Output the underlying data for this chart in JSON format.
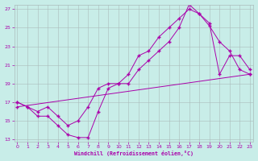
{
  "bg_color": "#c8ede8",
  "line_color": "#aa00aa",
  "grid_color": "#aabbbb",
  "xlim": [
    0,
    23
  ],
  "ylim": [
    13,
    27
  ],
  "xticks": [
    0,
    1,
    2,
    3,
    4,
    5,
    6,
    7,
    8,
    9,
    10,
    11,
    12,
    13,
    14,
    15,
    16,
    17,
    18,
    19,
    20,
    21,
    22,
    23
  ],
  "yticks": [
    13,
    15,
    17,
    19,
    21,
    23,
    25,
    27
  ],
  "xlabel": "Windchill (Refroidissement éolien,°C)",
  "series": [
    {
      "x": [
        0,
        1,
        2,
        3,
        4,
        5,
        6,
        7,
        8,
        9,
        10,
        11,
        12,
        13,
        14,
        15,
        16,
        17,
        18,
        19,
        20,
        21,
        22,
        23
      ],
      "y": [
        17.0,
        16.5,
        15.5,
        15.5,
        14.5,
        13.5,
        13.2,
        13.2,
        16.0,
        18.5,
        19.0,
        19.0,
        20.5,
        21.5,
        22.5,
        23.5,
        25.0,
        27.5,
        26.5,
        25.2,
        23.5,
        22.5,
        20.5,
        20.0
      ]
    },
    {
      "x": [
        0,
        1,
        2,
        3,
        4,
        5,
        6,
        7,
        8,
        9,
        10,
        11,
        12,
        13,
        14,
        15,
        16,
        17,
        18,
        19,
        20,
        21,
        22,
        23
      ],
      "y": [
        17.0,
        16.5,
        16.0,
        16.5,
        15.5,
        14.5,
        15.0,
        16.5,
        18.5,
        19.0,
        19.0,
        20.0,
        22.0,
        22.5,
        24.0,
        25.0,
        26.0,
        27.0,
        26.5,
        25.5,
        20.0,
        22.0,
        22.0,
        20.5
      ]
    },
    {
      "x": [
        0,
        23
      ],
      "y": [
        16.5,
        20.0
      ]
    }
  ]
}
